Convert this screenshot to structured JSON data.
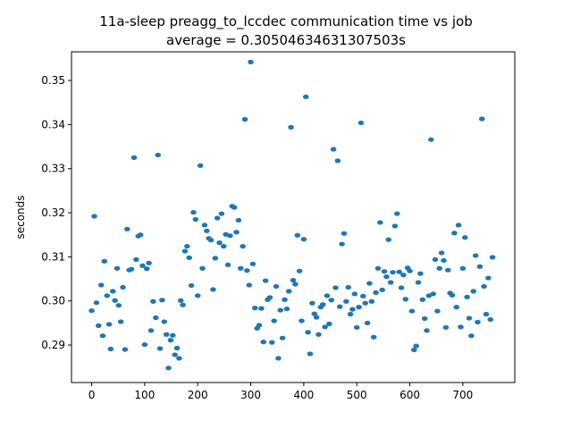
{
  "chart_data": {
    "type": "scatter",
    "title": "11a-sleep preagg_to_lccdec communication time vs job",
    "subtitle": "average = 0.30504634631307503s",
    "xlabel": "",
    "ylabel": "seconds",
    "xlim": [
      -38,
      798
    ],
    "ylim": [
      0.2815,
      0.3565
    ],
    "xticks": [
      0,
      100,
      200,
      300,
      400,
      500,
      600,
      700
    ],
    "yticks": [
      0.29,
      0.3,
      0.31,
      0.32,
      0.33,
      0.34,
      0.35
    ],
    "ytick_labels": [
      "0.29",
      "0.30",
      "0.31",
      "0.32",
      "0.33",
      "0.34",
      "0.35"
    ],
    "grid": false,
    "marker_color": "#1f77b4",
    "series": [
      {
        "points": [
          [
            0,
            0.2978
          ],
          [
            5,
            0.3192
          ],
          [
            9,
            0.2996
          ],
          [
            13,
            0.2944
          ],
          [
            18,
            0.3036
          ],
          [
            21,
            0.2921
          ],
          [
            24,
            0.309
          ],
          [
            29,
            0.3012
          ],
          [
            33,
            0.2947
          ],
          [
            36,
            0.2891
          ],
          [
            40,
            0.3022
          ],
          [
            44,
            0.3001
          ],
          [
            48,
            0.3074
          ],
          [
            51,
            0.299
          ],
          [
            55,
            0.2953
          ],
          [
            59,
            0.3031
          ],
          [
            63,
            0.289
          ],
          [
            67,
            0.3163
          ],
          [
            71,
            0.307
          ],
          [
            75,
            0.3072
          ],
          [
            80,
            0.3325
          ],
          [
            84,
            0.3094
          ],
          [
            88,
            0.3147
          ],
          [
            92,
            0.315
          ],
          [
            96,
            0.308
          ],
          [
            100,
            0.2901
          ],
          [
            104,
            0.3073
          ],
          [
            108,
            0.3086
          ],
          [
            112,
            0.2933
          ],
          [
            116,
            0.2999
          ],
          [
            121,
            0.2962
          ],
          [
            125,
            0.3331
          ],
          [
            129,
            0.2892
          ],
          [
            133,
            0.3002
          ],
          [
            137,
            0.2953
          ],
          [
            141,
            0.2924
          ],
          [
            145,
            0.2848
          ],
          [
            149,
            0.2911
          ],
          [
            153,
            0.2922
          ],
          [
            157,
            0.2878
          ],
          [
            161,
            0.2893
          ],
          [
            165,
            0.287
          ],
          [
            168,
            0.3001
          ],
          [
            172,
            0.2991
          ],
          [
            176,
            0.3113
          ],
          [
            180,
            0.3124
          ],
          [
            184,
            0.3098
          ],
          [
            188,
            0.3035
          ],
          [
            192,
            0.3201
          ],
          [
            196,
            0.3185
          ],
          [
            200,
            0.3012
          ],
          [
            205,
            0.3307
          ],
          [
            209,
            0.3074
          ],
          [
            213,
            0.3172
          ],
          [
            217,
            0.3159
          ],
          [
            221,
            0.3142
          ],
          [
            225,
            0.3138
          ],
          [
            229,
            0.3026
          ],
          [
            233,
            0.3097
          ],
          [
            237,
            0.3188
          ],
          [
            241,
            0.3132
          ],
          [
            245,
            0.3198
          ],
          [
            249,
            0.3124
          ],
          [
            253,
            0.3151
          ],
          [
            257,
            0.3082
          ],
          [
            261,
            0.3148
          ],
          [
            265,
            0.3215
          ],
          [
            269,
            0.3212
          ],
          [
            273,
            0.3156
          ],
          [
            277,
            0.3183
          ],
          [
            281,
            0.3074
          ],
          [
            285,
            0.3124
          ],
          [
            289,
            0.3412
          ],
          [
            293,
            0.3069
          ],
          [
            297,
            0.3036
          ],
          [
            300,
            0.3542
          ],
          [
            304,
            0.3084
          ],
          [
            308,
            0.2984
          ],
          [
            312,
            0.2938
          ],
          [
            316,
            0.2945
          ],
          [
            320,
            0.2983
          ],
          [
            324,
            0.2907
          ],
          [
            328,
            0.3046
          ],
          [
            332,
            0.3003
          ],
          [
            336,
            0.3008
          ],
          [
            340,
            0.2906
          ],
          [
            344,
            0.2955
          ],
          [
            348,
            0.3033
          ],
          [
            352,
            0.287
          ],
          [
            356,
            0.2979
          ],
          [
            360,
            0.2916
          ],
          [
            364,
            0.3003
          ],
          [
            368,
            0.2982
          ],
          [
            372,
            0.3022
          ],
          [
            376,
            0.3394
          ],
          [
            380,
            0.3047
          ],
          [
            384,
            0.3038
          ],
          [
            388,
            0.3149
          ],
          [
            392,
            0.3068
          ],
          [
            396,
            0.2955
          ],
          [
            400,
            0.314
          ],
          [
            404,
            0.3463
          ],
          [
            408,
            0.2929
          ],
          [
            412,
            0.288
          ],
          [
            416,
            0.2995
          ],
          [
            420,
            0.2971
          ],
          [
            424,
            0.2963
          ],
          [
            428,
            0.2924
          ],
          [
            432,
            0.2986
          ],
          [
            436,
            0.2992
          ],
          [
            440,
            0.2941
          ],
          [
            444,
            0.3012
          ],
          [
            448,
            0.2948
          ],
          [
            452,
            0.3002
          ],
          [
            456,
            0.3344
          ],
          [
            460,
            0.303
          ],
          [
            464,
            0.3318
          ],
          [
            468,
            0.2987
          ],
          [
            472,
            0.3129
          ],
          [
            476,
            0.3153
          ],
          [
            480,
            0.2999
          ],
          [
            484,
            0.3031
          ],
          [
            488,
            0.297
          ],
          [
            492,
            0.2981
          ],
          [
            496,
            0.3016
          ],
          [
            500,
            0.294
          ],
          [
            504,
            0.2986
          ],
          [
            508,
            0.3404
          ],
          [
            512,
            0.3011
          ],
          [
            516,
            0.2995
          ],
          [
            520,
            0.295
          ],
          [
            524,
            0.304
          ],
          [
            528,
            0.2999
          ],
          [
            532,
            0.2918
          ],
          [
            536,
            0.3019
          ],
          [
            540,
            0.3074
          ],
          [
            544,
            0.3178
          ],
          [
            548,
            0.3025
          ],
          [
            552,
            0.3067
          ],
          [
            556,
            0.3055
          ],
          [
            560,
            0.3139
          ],
          [
            564,
            0.3042
          ],
          [
            568,
            0.3065
          ],
          [
            572,
            0.317
          ],
          [
            576,
            0.3198
          ],
          [
            580,
            0.3066
          ],
          [
            584,
            0.303
          ],
          [
            588,
            0.3059
          ],
          [
            592,
            0.3004
          ],
          [
            596,
            0.3075
          ],
          [
            600,
            0.3068
          ],
          [
            604,
            0.2977
          ],
          [
            608,
            0.2889
          ],
          [
            612,
            0.2898
          ],
          [
            616,
            0.3042
          ],
          [
            620,
            0.3062
          ],
          [
            624,
            0.3003
          ],
          [
            628,
            0.296
          ],
          [
            632,
            0.2933
          ],
          [
            636,
            0.3012
          ],
          [
            640,
            0.3366
          ],
          [
            644,
            0.3016
          ],
          [
            648,
            0.3094
          ],
          [
            652,
            0.2977
          ],
          [
            656,
            0.3074
          ],
          [
            660,
            0.3109
          ],
          [
            664,
            0.3092
          ],
          [
            668,
            0.294
          ],
          [
            672,
            0.307
          ],
          [
            676,
            0.3018
          ],
          [
            680,
            0.3013
          ],
          [
            684,
            0.3154
          ],
          [
            688,
            0.2986
          ],
          [
            692,
            0.3172
          ],
          [
            696,
            0.2941
          ],
          [
            700,
            0.3074
          ],
          [
            704,
            0.3144
          ],
          [
            708,
            0.3009
          ],
          [
            712,
            0.2961
          ],
          [
            716,
            0.2921
          ],
          [
            720,
            0.3022
          ],
          [
            724,
            0.3103
          ],
          [
            728,
            0.2952
          ],
          [
            732,
            0.3078
          ],
          [
            736,
            0.3413
          ],
          [
            740,
            0.3033
          ],
          [
            744,
            0.297
          ],
          [
            748,
            0.3052
          ],
          [
            752,
            0.2958
          ],
          [
            756,
            0.3099
          ]
        ]
      }
    ]
  }
}
